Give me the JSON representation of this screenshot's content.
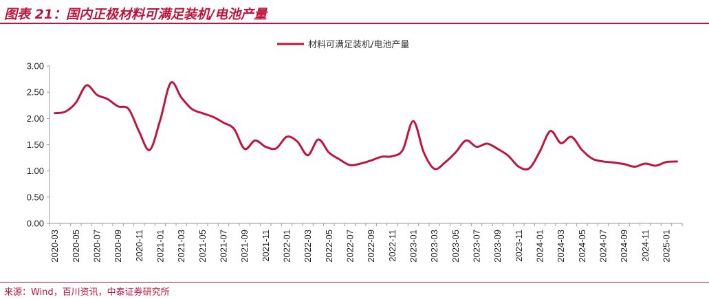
{
  "header": {
    "title": "图表 21：国内正极材料可满足装机/电池产量"
  },
  "footer": {
    "source": "来源：Wind，百川资讯，中泰证券研究所"
  },
  "colors": {
    "accent": "#c0143c",
    "series": "#c0143c",
    "axis": "#999999"
  },
  "chart_data": {
    "type": "line",
    "title": "",
    "xlabel": "",
    "ylabel": "",
    "ylim": [
      0,
      3
    ],
    "y_ticks": [
      "0.00",
      "0.50",
      "1.00",
      "1.50",
      "2.00",
      "2.50",
      "3.00"
    ],
    "x_tick_labels": [
      "2020-03",
      "2020-05",
      "2020-07",
      "2020-09",
      "2020-11",
      "2021-01",
      "2021-03",
      "2021-05",
      "2021-07",
      "2021-09",
      "2021-11",
      "2022-01",
      "2022-03",
      "2022-05",
      "2022-07",
      "2022-09",
      "2022-11",
      "2023-01",
      "2023-03",
      "2023-05",
      "2023-07",
      "2023-09",
      "2023-11",
      "2024-01",
      "2024-03",
      "2024-05",
      "2024-07",
      "2024-09",
      "2024-11",
      "2025-01"
    ],
    "legend": {
      "position": "top-center",
      "entries": [
        "材料可满足装机/电池产量"
      ]
    },
    "grid": false,
    "series": [
      {
        "name": "材料可满足装机/电池产量",
        "x": [
          "2020-03",
          "2020-04",
          "2020-05",
          "2020-06",
          "2020-07",
          "2020-08",
          "2020-09",
          "2020-10",
          "2020-11",
          "2020-12",
          "2021-01",
          "2021-02",
          "2021-03",
          "2021-04",
          "2021-05",
          "2021-06",
          "2021-07",
          "2021-08",
          "2021-09",
          "2021-10",
          "2021-11",
          "2021-12",
          "2022-01",
          "2022-02",
          "2022-03",
          "2022-04",
          "2022-05",
          "2022-06",
          "2022-07",
          "2022-08",
          "2022-09",
          "2022-10",
          "2022-11",
          "2022-12",
          "2023-01",
          "2023-02",
          "2023-03",
          "2023-04",
          "2023-05",
          "2023-06",
          "2023-07",
          "2023-08",
          "2023-09",
          "2023-10",
          "2023-11",
          "2023-12",
          "2024-01",
          "2024-02",
          "2024-03",
          "2024-04",
          "2024-05",
          "2024-06",
          "2024-07",
          "2024-08",
          "2024-09",
          "2024-10",
          "2024-11",
          "2024-12",
          "2025-01",
          "2025-02"
        ],
        "values": [
          2.1,
          2.13,
          2.3,
          2.63,
          2.45,
          2.37,
          2.23,
          2.18,
          1.75,
          1.4,
          1.97,
          2.68,
          2.4,
          2.18,
          2.1,
          2.03,
          1.92,
          1.8,
          1.42,
          1.58,
          1.46,
          1.43,
          1.65,
          1.56,
          1.3,
          1.6,
          1.35,
          1.22,
          1.11,
          1.14,
          1.2,
          1.27,
          1.28,
          1.4,
          1.95,
          1.35,
          1.04,
          1.16,
          1.35,
          1.58,
          1.46,
          1.52,
          1.42,
          1.29,
          1.08,
          1.05,
          1.37,
          1.76,
          1.53,
          1.65,
          1.4,
          1.23,
          1.18,
          1.16,
          1.13,
          1.08,
          1.14,
          1.1,
          1.17,
          1.18
        ]
      }
    ]
  }
}
